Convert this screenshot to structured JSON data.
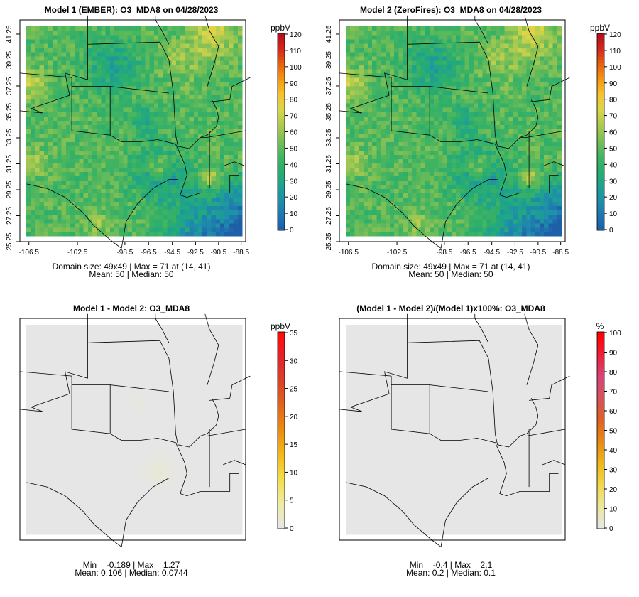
{
  "figure": {
    "colors": {
      "main_ramp": [
        "#1f5fa8",
        "#1f78b0",
        "#1e91a8",
        "#1ea58a",
        "#2bae6d",
        "#49b55f",
        "#7dbf55",
        "#aecb4f",
        "#dcd64a",
        "#f4c430",
        "#f49b12",
        "#e8650e",
        "#d62a1e",
        "#b8101a"
      ],
      "diff_ramp": [
        "#e6e6e6",
        "#eeeba2",
        "#f3df4a",
        "#f2b91a",
        "#eb8e10",
        "#e2661c",
        "#d94427",
        "#e3242a",
        "#ff0a0a"
      ],
      "pct_ramp": [
        "#e6e6e6",
        "#ece79a",
        "#f1d74a",
        "#f0b41a",
        "#e88a12",
        "#de6026",
        "#d4545a",
        "#d6457a",
        "#ee203a",
        "#ff0000"
      ],
      "border": "#000000"
    },
    "panels": [
      {
        "id": "model1",
        "kind": "field",
        "title": "Model 1 (EMBER): O3_MDA8 on 04/28/2023",
        "legend": {
          "unit": "ppbV",
          "ticks": [
            "0",
            "10",
            "20",
            "30",
            "40",
            "50",
            "60",
            "70",
            "80",
            "90",
            "100",
            "110",
            "120"
          ]
        },
        "stats": [
          "Domain size: 49x49 | Max = 71 at (14, 41)",
          "Mean: 50 |  Median: 50"
        ]
      },
      {
        "id": "model2",
        "kind": "field",
        "title": "Model 2 (ZeroFires): O3_MDA8 on 04/28/2023",
        "legend": {
          "unit": "ppbV",
          "ticks": [
            "0",
            "10",
            "20",
            "30",
            "40",
            "50",
            "60",
            "70",
            "80",
            "90",
            "100",
            "110",
            "120"
          ]
        },
        "stats": [
          "Domain size: 49x49 | Max = 71 at (14, 41)",
          "Mean: 50 |  Median: 50"
        ]
      },
      {
        "id": "diff",
        "kind": "diff",
        "title": "Model 1 - Model 2: O3_MDA8",
        "legend": {
          "unit": "ppbV",
          "ticks": [
            "0",
            "5",
            "10",
            "15",
            "20",
            "25",
            "30",
            "35"
          ]
        },
        "stats": [
          "Min = -0.189 | Max = 1.27",
          "Mean: 0.106 |  Median: 0.0744"
        ]
      },
      {
        "id": "pct",
        "kind": "pct",
        "title": "(Model 1 - Model 2)/(Model 1)x100%: O3_MDA8",
        "legend": {
          "unit": "%",
          "ticks": [
            "0",
            "10",
            "20",
            "30",
            "40",
            "50",
            "60",
            "70",
            "80",
            "90",
            "100"
          ]
        },
        "stats": [
          "Min = -0.4 | Max = 2.1",
          "Mean: 0.2 |  Median: 0.1"
        ]
      }
    ]
  },
  "chart_data": [
    {
      "type": "heatmap",
      "title": "Model 1 (EMBER): O3_MDA8 on 04/28/2023",
      "xlabel": "",
      "ylabel": "",
      "xticks": [
        "-106.5",
        "-102.5",
        "-98.5",
        "-96.5",
        "-94.5",
        "-92.5",
        "-90.5",
        "-88.5"
      ],
      "yticks": [
        "25.25",
        "27.25",
        "29.25",
        "31.25",
        "33.25",
        "35.25",
        "37.25",
        "39.25",
        "41.25"
      ],
      "xlim": [
        -107.0,
        -88.0
      ],
      "ylim": [
        25.0,
        41.5
      ],
      "grid": [
        49,
        49
      ],
      "unit": "ppbV",
      "zlim": [
        0,
        120
      ],
      "max": 71,
      "max_cell": [
        14,
        41
      ],
      "mean": 50,
      "median": 50
    },
    {
      "type": "heatmap",
      "title": "Model 2 (ZeroFires): O3_MDA8 on 04/28/2023",
      "xlabel": "",
      "ylabel": "",
      "xticks": [
        "-106.5",
        "-102.5",
        "-98.5",
        "-96.5",
        "-94.5",
        "-92.5",
        "-90.5",
        "-88.5"
      ],
      "yticks": [
        "25.25",
        "27.25",
        "29.25",
        "31.25",
        "33.25",
        "35.25",
        "37.25",
        "39.25",
        "41.25"
      ],
      "xlim": [
        -107.0,
        -88.0
      ],
      "ylim": [
        25.0,
        41.5
      ],
      "grid": [
        49,
        49
      ],
      "unit": "ppbV",
      "zlim": [
        0,
        120
      ],
      "max": 71,
      "max_cell": [
        14,
        41
      ],
      "mean": 50,
      "median": 50
    },
    {
      "type": "heatmap",
      "title": "Model 1 - Model 2: O3_MDA8",
      "unit": "ppbV",
      "zlim": [
        0,
        35
      ],
      "min": -0.189,
      "max": 1.27,
      "mean": 0.106,
      "median": 0.0744
    },
    {
      "type": "heatmap",
      "title": "(Model 1 - Model 2)/(Model 1)x100%: O3_MDA8",
      "unit": "%",
      "zlim": [
        0,
        100
      ],
      "min": -0.4,
      "max": 2.1,
      "mean": 0.2,
      "median": 0.1
    }
  ]
}
